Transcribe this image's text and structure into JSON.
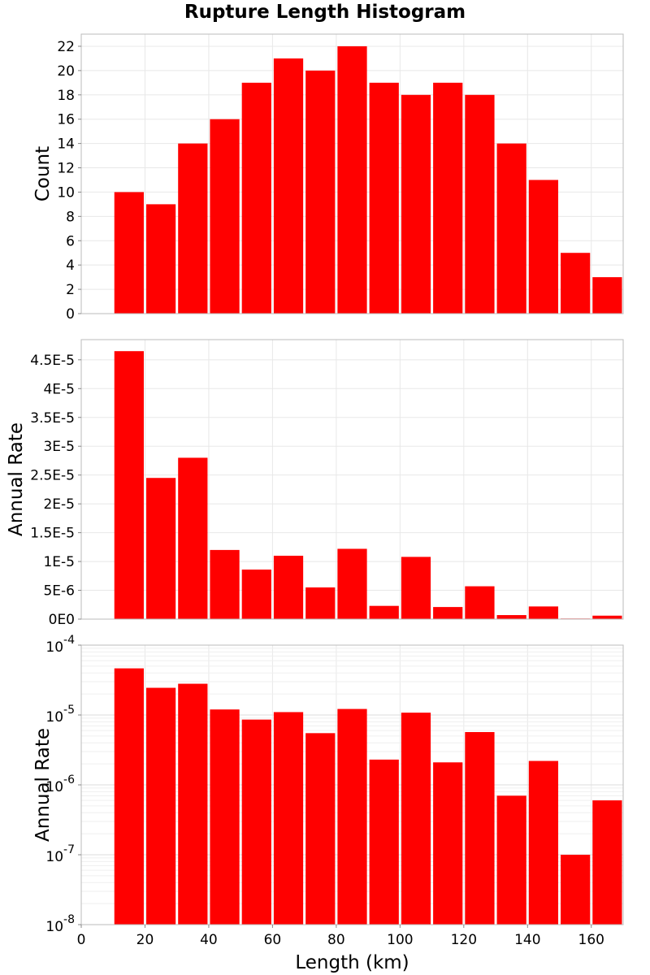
{
  "title": "Rupture Length Histogram",
  "chart_data": [
    {
      "type": "bar",
      "title": "Rupture Length Histogram",
      "x": [
        15,
        25,
        35,
        45,
        55,
        65,
        75,
        85,
        95,
        105,
        115,
        125,
        135,
        145,
        155,
        165
      ],
      "values": [
        10,
        9,
        14,
        16,
        19,
        21,
        20,
        22,
        19,
        18,
        19,
        18,
        14,
        11,
        5,
        3
      ],
      "xlabel": "",
      "ylabel": "Count",
      "xlim": [
        0,
        170
      ],
      "ylim": [
        0,
        23
      ],
      "yticks": [
        0,
        2,
        4,
        6,
        8,
        10,
        12,
        14,
        16,
        18,
        20,
        22
      ],
      "ytick_labels": [
        "0",
        "2",
        "4",
        "6",
        "8",
        "10",
        "12",
        "14",
        "16",
        "18",
        "20",
        "22"
      ],
      "bar_color": "#ff0000",
      "grid": true
    },
    {
      "type": "bar",
      "x": [
        15,
        25,
        35,
        45,
        55,
        65,
        75,
        85,
        95,
        105,
        115,
        125,
        135,
        145,
        155,
        165
      ],
      "values": [
        4.65e-05,
        2.45e-05,
        2.8e-05,
        1.2e-05,
        8.6e-06,
        1.1e-05,
        5.5e-06,
        1.22e-05,
        2.3e-06,
        1.08e-05,
        2.1e-06,
        5.7e-06,
        7e-07,
        2.2e-06,
        1e-07,
        6e-07
      ],
      "xlabel": "",
      "ylabel": "Annual Rate",
      "xlim": [
        0,
        170
      ],
      "ylim": [
        0,
        4.85e-05
      ],
      "yticks": [
        0,
        5e-06,
        1e-05,
        1.5e-05,
        2e-05,
        2.5e-05,
        3e-05,
        3.5e-05,
        4e-05,
        4.5e-05
      ],
      "ytick_labels": [
        "0E0",
        "5E-6",
        "1E-5",
        "1.5E-5",
        "2E-5",
        "2.5E-5",
        "3E-5",
        "3.5E-5",
        "4E-5",
        "4.5E-5"
      ],
      "bar_color": "#ff0000",
      "grid": true
    },
    {
      "type": "bar",
      "x": [
        15,
        25,
        35,
        45,
        55,
        65,
        75,
        85,
        95,
        105,
        115,
        125,
        135,
        145,
        155,
        165
      ],
      "values": [
        4.65e-05,
        2.45e-05,
        2.8e-05,
        1.2e-05,
        8.6e-06,
        1.1e-05,
        5.5e-06,
        1.22e-05,
        2.3e-06,
        1.08e-05,
        2.1e-06,
        5.7e-06,
        7e-07,
        2.2e-06,
        1e-07,
        6e-07
      ],
      "xlabel": "Length (km)",
      "ylabel": "Annual Rate",
      "xlim": [
        0,
        170
      ],
      "ylim": [
        1e-08,
        0.0001
      ],
      "yscale": "log",
      "yticks": [
        -8,
        -7,
        -6,
        -5,
        -4
      ],
      "ytick_base": "10",
      "ytick_exponents": [
        "-8",
        "-7",
        "-6",
        "-5",
        "-4"
      ],
      "xticks": [
        0,
        20,
        40,
        60,
        80,
        100,
        120,
        140,
        160
      ],
      "xtick_labels": [
        "0",
        "20",
        "40",
        "60",
        "80",
        "100",
        "120",
        "140",
        "160"
      ],
      "bar_color": "#ff0000",
      "grid": true
    }
  ]
}
